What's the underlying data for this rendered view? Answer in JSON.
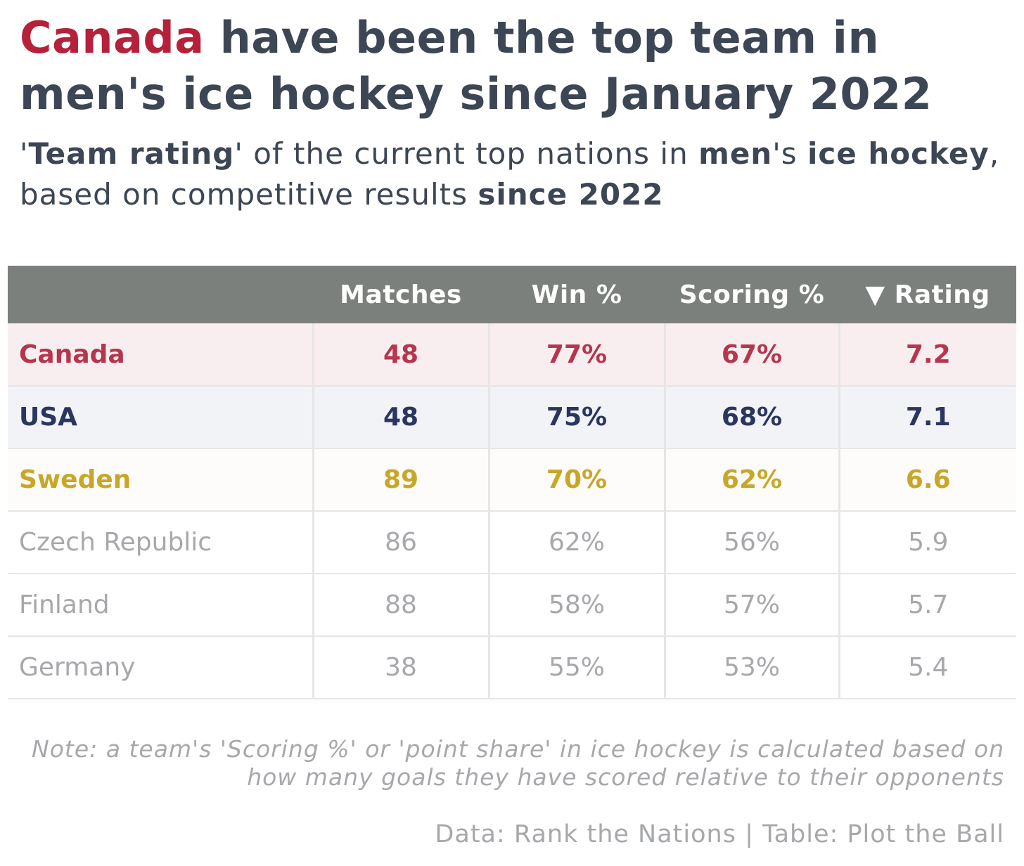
{
  "title": {
    "highlight": "Canada",
    "rest": " have been the top team in men's ice hockey since January 2022"
  },
  "subtitle": {
    "p1": "'",
    "b1": "Team rating",
    "p2": "' of the current top nations in ",
    "b2": "men's",
    "p3": "'s ",
    "b3": "ice hockey",
    "p4": ", based on competitive results ",
    "b4": "since 2022"
  },
  "chart_data": {
    "type": "table",
    "columns": [
      "",
      "Matches",
      "Win %",
      "Scoring %",
      "▼ Rating"
    ],
    "rows": [
      {
        "team": "Canada",
        "matches": "48",
        "win": "77%",
        "scoring": "67%",
        "rating": "7.2"
      },
      {
        "team": "USA",
        "matches": "48",
        "win": "75%",
        "scoring": "68%",
        "rating": "7.1"
      },
      {
        "team": "Sweden",
        "matches": "89",
        "win": "70%",
        "scoring": "62%",
        "rating": "6.6"
      },
      {
        "team": "Czech Republic",
        "matches": "86",
        "win": "62%",
        "scoring": "56%",
        "rating": "5.9"
      },
      {
        "team": "Finland",
        "matches": "88",
        "win": "58%",
        "scoring": "57%",
        "rating": "5.7"
      },
      {
        "team": "Germany",
        "matches": "38",
        "win": "55%",
        "scoring": "53%",
        "rating": "5.4"
      }
    ]
  },
  "note": "Note: a team's 'Scoring %' or 'point share' in ice hockey is calculated based on how many goals they have scored relative to their opponents",
  "credit": "Data: Rank the Nations | Table: Plot the Ball",
  "colors": {
    "canada": "#b5203a",
    "usa": "#2a3560",
    "sweden": "#c8a728",
    "muted": "#a6a8ab",
    "header_bg": "#7c807d",
    "text": "#3d4654"
  }
}
